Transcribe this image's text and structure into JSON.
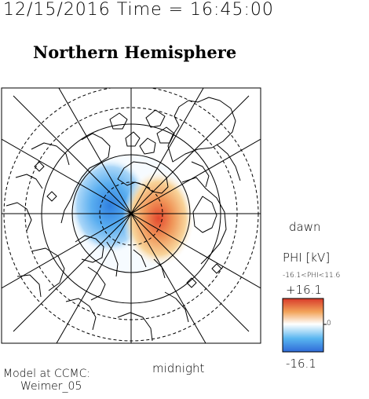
{
  "header": {
    "datetime": "12/15/2016 Time = 16:45:00",
    "hemisphere": "Northern Hemisphere"
  },
  "map": {
    "projection": "polar",
    "pole": "north",
    "labels": {
      "dawn": "dawn",
      "midnight": "midnight"
    },
    "potential_cells": [
      {
        "sign": "negative",
        "color": "#3d8ee6"
      },
      {
        "sign": "positive",
        "color": "#e84a2e"
      }
    ]
  },
  "colorbar": {
    "title": "PHI [kV]",
    "range_text": "-16.1<PHI<11.6",
    "max_label": "+16.1",
    "min_label": "-16.1",
    "zero_label": "0",
    "colors": [
      "#2f6bd8",
      "#59b6f0",
      "#ffffff",
      "#f2a35a",
      "#d83a2a"
    ]
  },
  "credit": {
    "line1": "Model at CCMC:",
    "line2": "Weimer_05"
  }
}
